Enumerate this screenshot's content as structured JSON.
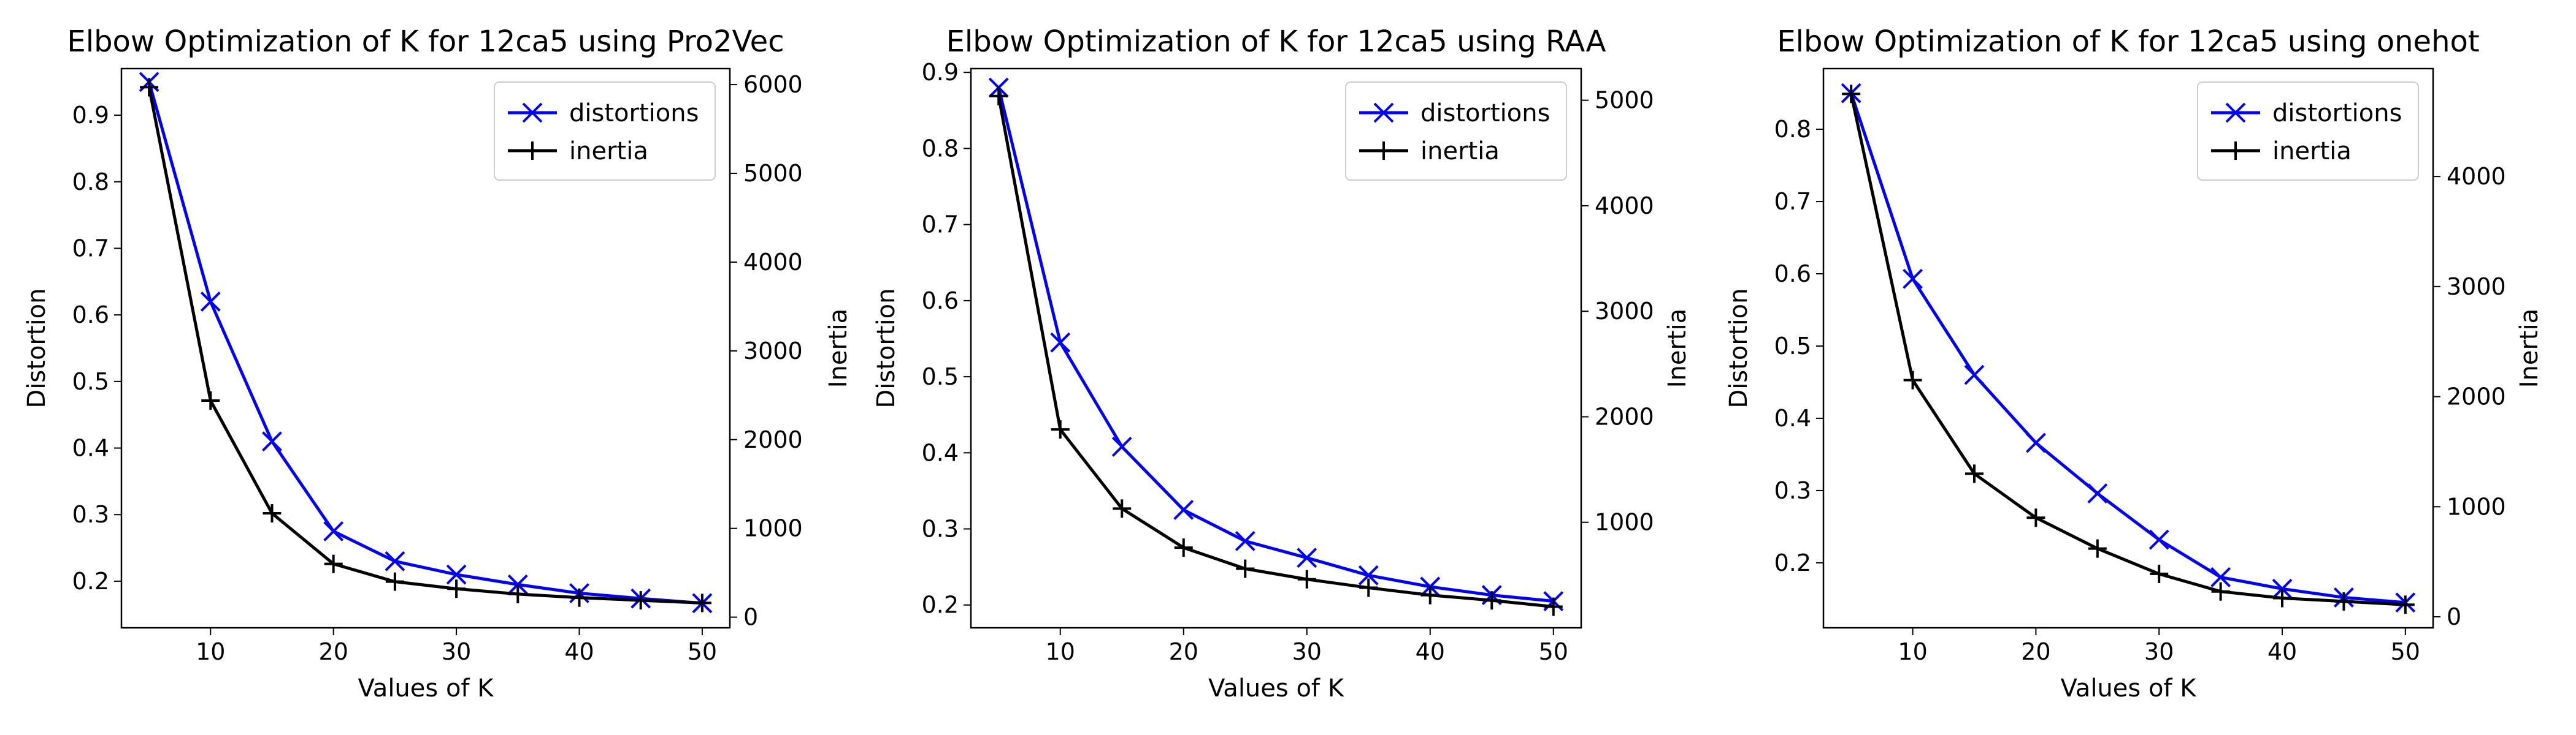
{
  "chart_data": [
    {
      "type": "line",
      "title": "Elbow Optimization of K for 12ca5 using Pro2Vec",
      "xlabel": "Values of K",
      "ylabel": "Distortion",
      "y2label": "Inertia",
      "x": [
        5,
        10,
        15,
        20,
        25,
        30,
        35,
        40,
        45,
        50
      ],
      "xlim": [
        2.75,
        52.25
      ],
      "xticks": [
        10,
        20,
        30,
        40,
        50
      ],
      "ylim": [
        0.13,
        0.97
      ],
      "yticks": [
        0.2,
        0.3,
        0.4,
        0.5,
        0.6,
        0.7,
        0.8,
        0.9
      ],
      "y2lim": [
        -120,
        6180
      ],
      "y2ticks": [
        0,
        1000,
        2000,
        3000,
        4000,
        5000,
        6000
      ],
      "legend_position": "top-right",
      "series": [
        {
          "name": "distortions",
          "axis": "left",
          "color": "#0000ff",
          "marker": "x",
          "values": [
            0.95,
            0.62,
            0.41,
            0.275,
            0.23,
            0.21,
            0.195,
            0.182,
            0.174,
            0.167
          ]
        },
        {
          "name": "inertia",
          "axis": "right",
          "color": "#000000",
          "marker": "+",
          "values": [
            5970,
            2440,
            1170,
            600,
            400,
            320,
            260,
            220,
            190,
            160
          ]
        }
      ]
    },
    {
      "type": "line",
      "title": "Elbow Optimization of K for 12ca5 using RAA",
      "xlabel": "Values of K",
      "ylabel": "Distortion",
      "y2label": "Inertia",
      "x": [
        5,
        10,
        15,
        20,
        25,
        30,
        35,
        40,
        45,
        50
      ],
      "xlim": [
        2.75,
        52.25
      ],
      "xticks": [
        10,
        20,
        30,
        40,
        50
      ],
      "ylim": [
        0.17,
        0.905
      ],
      "yticks": [
        0.2,
        0.3,
        0.4,
        0.5,
        0.6,
        0.7,
        0.8,
        0.9
      ],
      "y2lim": [
        0,
        5300
      ],
      "y2ticks": [
        1000,
        2000,
        3000,
        4000,
        5000
      ],
      "legend_position": "top-right",
      "series": [
        {
          "name": "distortions",
          "axis": "left",
          "color": "#0000ff",
          "marker": "x",
          "values": [
            0.88,
            0.545,
            0.408,
            0.325,
            0.284,
            0.262,
            0.239,
            0.224,
            0.213,
            0.205
          ]
        },
        {
          "name": "inertia",
          "axis": "right",
          "color": "#000000",
          "marker": "+",
          "values": [
            5040,
            1880,
            1130,
            760,
            560,
            460,
            380,
            310,
            260,
            200
          ]
        }
      ]
    },
    {
      "type": "line",
      "title": "Elbow Optimization of K for 12ca5 using onehot",
      "xlabel": "Values of K",
      "ylabel": "Distortion",
      "y2label": "Inertia",
      "x": [
        5,
        10,
        15,
        20,
        25,
        30,
        35,
        40,
        45,
        50
      ],
      "xlim": [
        2.75,
        52.25
      ],
      "xticks": [
        10,
        20,
        30,
        40,
        50
      ],
      "ylim": [
        0.11,
        0.884
      ],
      "yticks": [
        0.2,
        0.3,
        0.4,
        0.5,
        0.6,
        0.7,
        0.8
      ],
      "y2lim": [
        -100,
        4980
      ],
      "y2ticks": [
        0,
        1000,
        2000,
        3000,
        4000
      ],
      "legend_position": "top-right",
      "series": [
        {
          "name": "distortions",
          "axis": "left",
          "color": "#0000ff",
          "marker": "x",
          "values": [
            0.85,
            0.593,
            0.46,
            0.366,
            0.296,
            0.232,
            0.18,
            0.164,
            0.152,
            0.145
          ]
        },
        {
          "name": "inertia",
          "axis": "right",
          "color": "#000000",
          "marker": "+",
          "values": [
            4750,
            2150,
            1300,
            900,
            620,
            390,
            230,
            170,
            140,
            110
          ]
        }
      ]
    }
  ]
}
